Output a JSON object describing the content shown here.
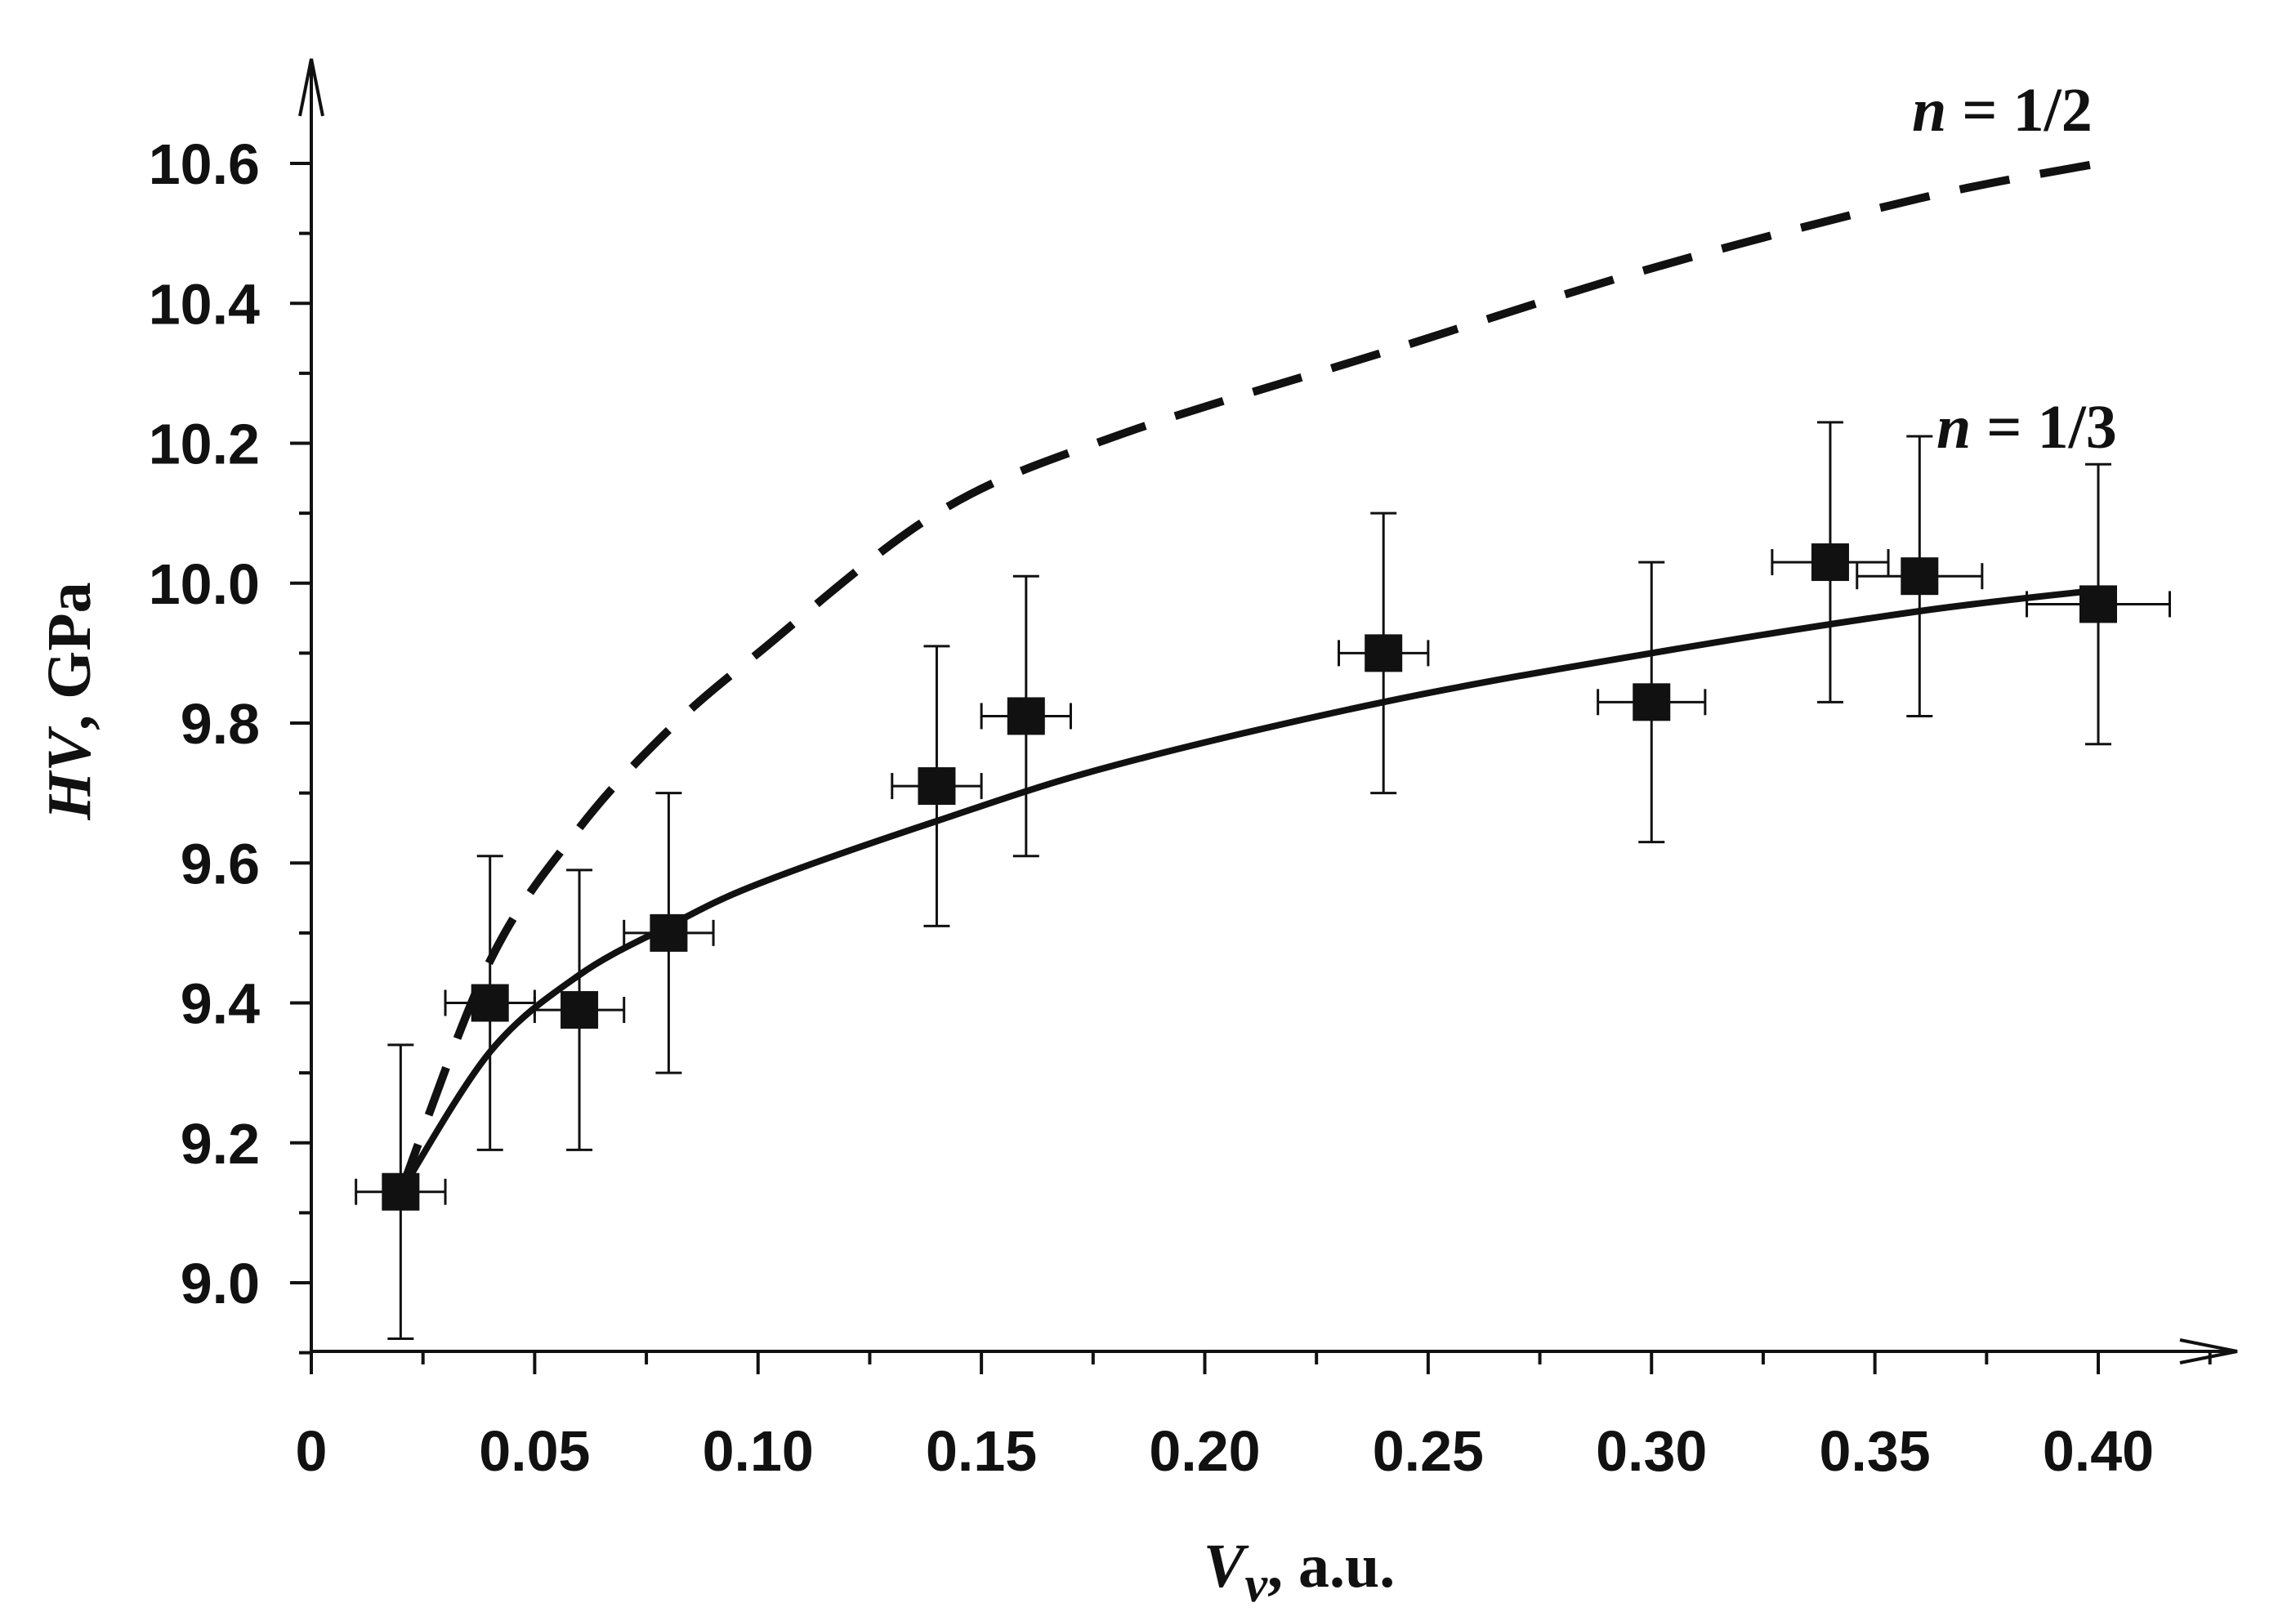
{
  "chart_data": {
    "type": "scatter",
    "title": "",
    "xlabel": {
      "var": "V",
      "sub": "v",
      "unit": ",  a.u."
    },
    "ylabel": {
      "var": "HV",
      "unit": ", GPa"
    },
    "xlim": [
      0,
      0.43
    ],
    "ylim": [
      8.9,
      10.75
    ],
    "x_ticks": [
      0,
      0.05,
      0.1,
      0.15,
      0.2,
      0.25,
      0.3,
      0.35,
      0.4
    ],
    "x_tick_labels": [
      "0",
      "0.05",
      "0.10",
      "0.15",
      "0.20",
      "0.25",
      "0.30",
      "0.35",
      "0.40"
    ],
    "y_ticks": [
      9.0,
      9.2,
      9.4,
      9.6,
      9.8,
      10.0,
      10.2,
      10.4,
      10.6
    ],
    "y_tick_labels": [
      "9.0",
      "9.2",
      "9.4",
      "9.6",
      "9.8",
      "10.0",
      "10.2",
      "10.4",
      "10.6"
    ],
    "grid": false,
    "points": {
      "x": [
        0.02,
        0.04,
        0.06,
        0.08,
        0.14,
        0.16,
        0.24,
        0.3,
        0.34,
        0.36,
        0.4
      ],
      "y": [
        9.13,
        9.4,
        9.39,
        9.5,
        9.71,
        9.81,
        9.9,
        9.83,
        10.03,
        10.01,
        9.97
      ],
      "yerr": [
        0.21,
        0.21,
        0.2,
        0.2,
        0.2,
        0.2,
        0.2,
        0.2,
        0.2,
        0.2,
        0.2
      ],
      "xerr": [
        0.01,
        0.01,
        0.01,
        0.01,
        0.01,
        0.01,
        0.01,
        0.012,
        0.013,
        0.014,
        0.016
      ]
    },
    "series": [
      {
        "values": {
          "x": [
            0.02,
            0.04,
            0.06,
            0.08,
            0.1,
            0.14,
            0.18,
            0.24,
            0.3,
            0.36,
            0.4
          ],
          "y": [
            9.13,
            9.33,
            9.44,
            9.51,
            9.57,
            9.66,
            9.74,
            9.83,
            9.9,
            9.96,
            9.99
          ]
        },
        "style": "solid"
      },
      {
        "values": {
          "x": [
            0.02,
            0.04,
            0.06,
            0.08,
            0.1,
            0.14,
            0.18,
            0.24,
            0.3,
            0.36,
            0.4
          ],
          "y": [
            9.13,
            9.46,
            9.65,
            9.79,
            9.9,
            10.1,
            10.21,
            10.33,
            10.45,
            10.55,
            10.6
          ]
        },
        "style": "dashed"
      }
    ],
    "annotations": [
      {
        "text_var": "n",
        "text_rest": " = 1/2",
        "series": 1
      },
      {
        "text_var": "n",
        "text_rest": " = 1/3",
        "series": 0
      }
    ],
    "colors": {
      "ink": "#111111",
      "background": "#ffffff"
    }
  }
}
